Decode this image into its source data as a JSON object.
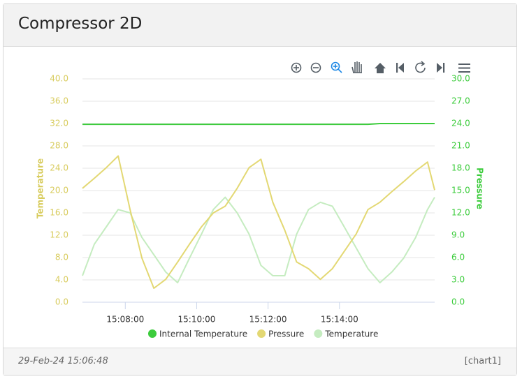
{
  "card": {
    "title": "Compressor 2D",
    "timestamp": "29-Feb-24 15:06:48",
    "id": "[chart1]"
  },
  "chart_data": {
    "type": "line",
    "y_title": "Temperature",
    "y2_title": "Pressure",
    "y_axis_color": "#d8cc5e",
    "y2_axis_color": "#3ccc3c",
    "x": [
      "15:06:48",
      "15:07:08",
      "15:07:28",
      "15:07:48",
      "15:08:08",
      "15:08:28",
      "15:08:48",
      "15:09:08",
      "15:09:28",
      "15:09:48",
      "15:10:08",
      "15:10:28",
      "15:10:48",
      "15:11:08",
      "15:11:28",
      "15:11:48",
      "15:12:08",
      "15:12:28",
      "15:12:48",
      "15:13:08",
      "15:13:28",
      "15:13:48",
      "15:14:08",
      "15:14:28",
      "15:14:48",
      "15:15:08",
      "15:15:28",
      "15:15:48",
      "15:16:08",
      "15:16:28",
      "15:16:40"
    ],
    "xlim": [
      "15:06:48",
      "15:16:40"
    ],
    "xticks": [
      "15:08:00",
      "15:10:00",
      "15:12:00",
      "15:14:00"
    ],
    "ylim": [
      0,
      40
    ],
    "yticks": [
      {
        "value": 0,
        "label": "0.0"
      },
      {
        "value": 4,
        "label": "4.0"
      },
      {
        "value": 8,
        "label": "8.0"
      },
      {
        "value": 12,
        "label": "12.0"
      },
      {
        "value": 16,
        "label": "16.0"
      },
      {
        "value": 20,
        "label": "20.0"
      },
      {
        "value": 24,
        "label": "24.0"
      },
      {
        "value": 28,
        "label": "28.0"
      },
      {
        "value": 32,
        "label": "32.0"
      },
      {
        "value": 36,
        "label": "36.0"
      },
      {
        "value": 40,
        "label": "40.0"
      }
    ],
    "y2lim": [
      0,
      30
    ],
    "y2ticks": [
      {
        "value": 0,
        "label": "0.0"
      },
      {
        "value": 3,
        "label": "3.0"
      },
      {
        "value": 6,
        "label": "6.0"
      },
      {
        "value": 9,
        "label": "9.0"
      },
      {
        "value": 12,
        "label": "12.0"
      },
      {
        "value": 15,
        "label": "15.0"
      },
      {
        "value": 18,
        "label": "18.0"
      },
      {
        "value": 21,
        "label": "21.0"
      },
      {
        "value": 24,
        "label": "24.0"
      },
      {
        "value": 27,
        "label": "27.0"
      },
      {
        "value": 30,
        "label": "30.0"
      }
    ],
    "grid": true,
    "series": [
      {
        "name": "Internal Temperature",
        "color": "#3ccc3c",
        "axis": "y2",
        "values": [
          23.9,
          23.9,
          23.9,
          23.9,
          23.9,
          23.9,
          23.9,
          23.9,
          23.9,
          23.9,
          23.9,
          23.9,
          23.9,
          23.9,
          23.9,
          23.9,
          23.9,
          23.9,
          23.9,
          23.9,
          23.9,
          23.9,
          23.9,
          23.9,
          23.9,
          24.0,
          24.0,
          24.0,
          24.0,
          24.0,
          24.0
        ]
      },
      {
        "name": "Pressure",
        "color": "#e3d873",
        "values": [
          20.4,
          22.2,
          24.1,
          26.2,
          16.6,
          7.9,
          2.5,
          4.1,
          7.2,
          10.4,
          13.5,
          16,
          17.2,
          20.4,
          24.1,
          25.6,
          17.9,
          12.9,
          7.2,
          6,
          4.1,
          6,
          9.1,
          12.2,
          16.6,
          17.9,
          19.8,
          21.6,
          23.5,
          25.1,
          20.1
        ]
      },
      {
        "name": "Temperature",
        "color": "#c5ecc0",
        "values": [
          4.75,
          10.4,
          13.5,
          16.6,
          16,
          11.6,
          8.5,
          5.4,
          3.5,
          7.9,
          12.2,
          16.6,
          18.8,
          16,
          12.2,
          6.6,
          4.75,
          4.75,
          12.2,
          16.6,
          17.9,
          17.2,
          13.5,
          9.75,
          6,
          3.5,
          5.4,
          7.9,
          11.6,
          16.6,
          18.8
        ]
      }
    ]
  }
}
